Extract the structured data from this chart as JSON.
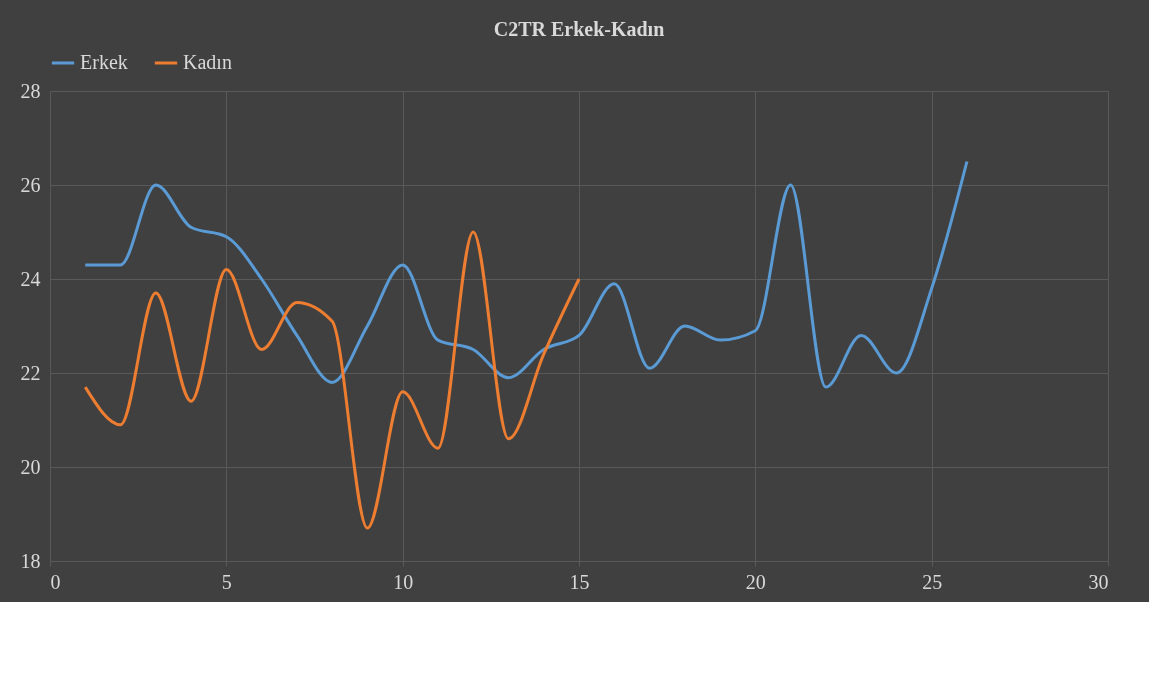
{
  "chart_data": {
    "type": "line",
    "title": "C2TR Erkek-Kadın",
    "x": [
      1,
      2,
      3,
      4,
      5,
      6,
      7,
      8,
      9,
      10,
      11,
      12,
      13,
      14,
      15,
      16,
      17,
      18,
      19,
      20,
      21,
      22,
      23,
      24,
      25,
      26
    ],
    "series": [
      {
        "name": "Erkek",
        "color": "#5b9bd5",
        "values": [
          24.3,
          24.3,
          26.0,
          25.1,
          24.9,
          24.0,
          22.8,
          21.8,
          23.0,
          24.3,
          22.7,
          22.5,
          21.9,
          22.5,
          22.8,
          23.9,
          22.1,
          23.0,
          22.7,
          22.9,
          26.0,
          21.7,
          22.8,
          22.0,
          23.8,
          26.5
        ]
      },
      {
        "name": "Kadın",
        "color": "#ed7d31",
        "x": [
          1,
          2,
          3,
          4,
          5,
          6,
          7,
          8,
          9,
          10,
          11,
          12,
          13,
          14,
          15
        ],
        "values": [
          21.7,
          20.9,
          23.7,
          21.4,
          24.2,
          22.5,
          23.5,
          23.1,
          18.7,
          21.6,
          20.4,
          25.0,
          20.6,
          22.4,
          24.0
        ]
      }
    ],
    "xlim": [
      0,
      30
    ],
    "xticks": [
      0,
      5,
      10,
      15,
      20,
      25,
      30
    ],
    "ylim": [
      18,
      28
    ],
    "yticks": [
      18,
      20,
      22,
      24,
      26,
      28
    ],
    "grid": true,
    "legend": "top",
    "marker": "none",
    "line_style": "solid"
  }
}
